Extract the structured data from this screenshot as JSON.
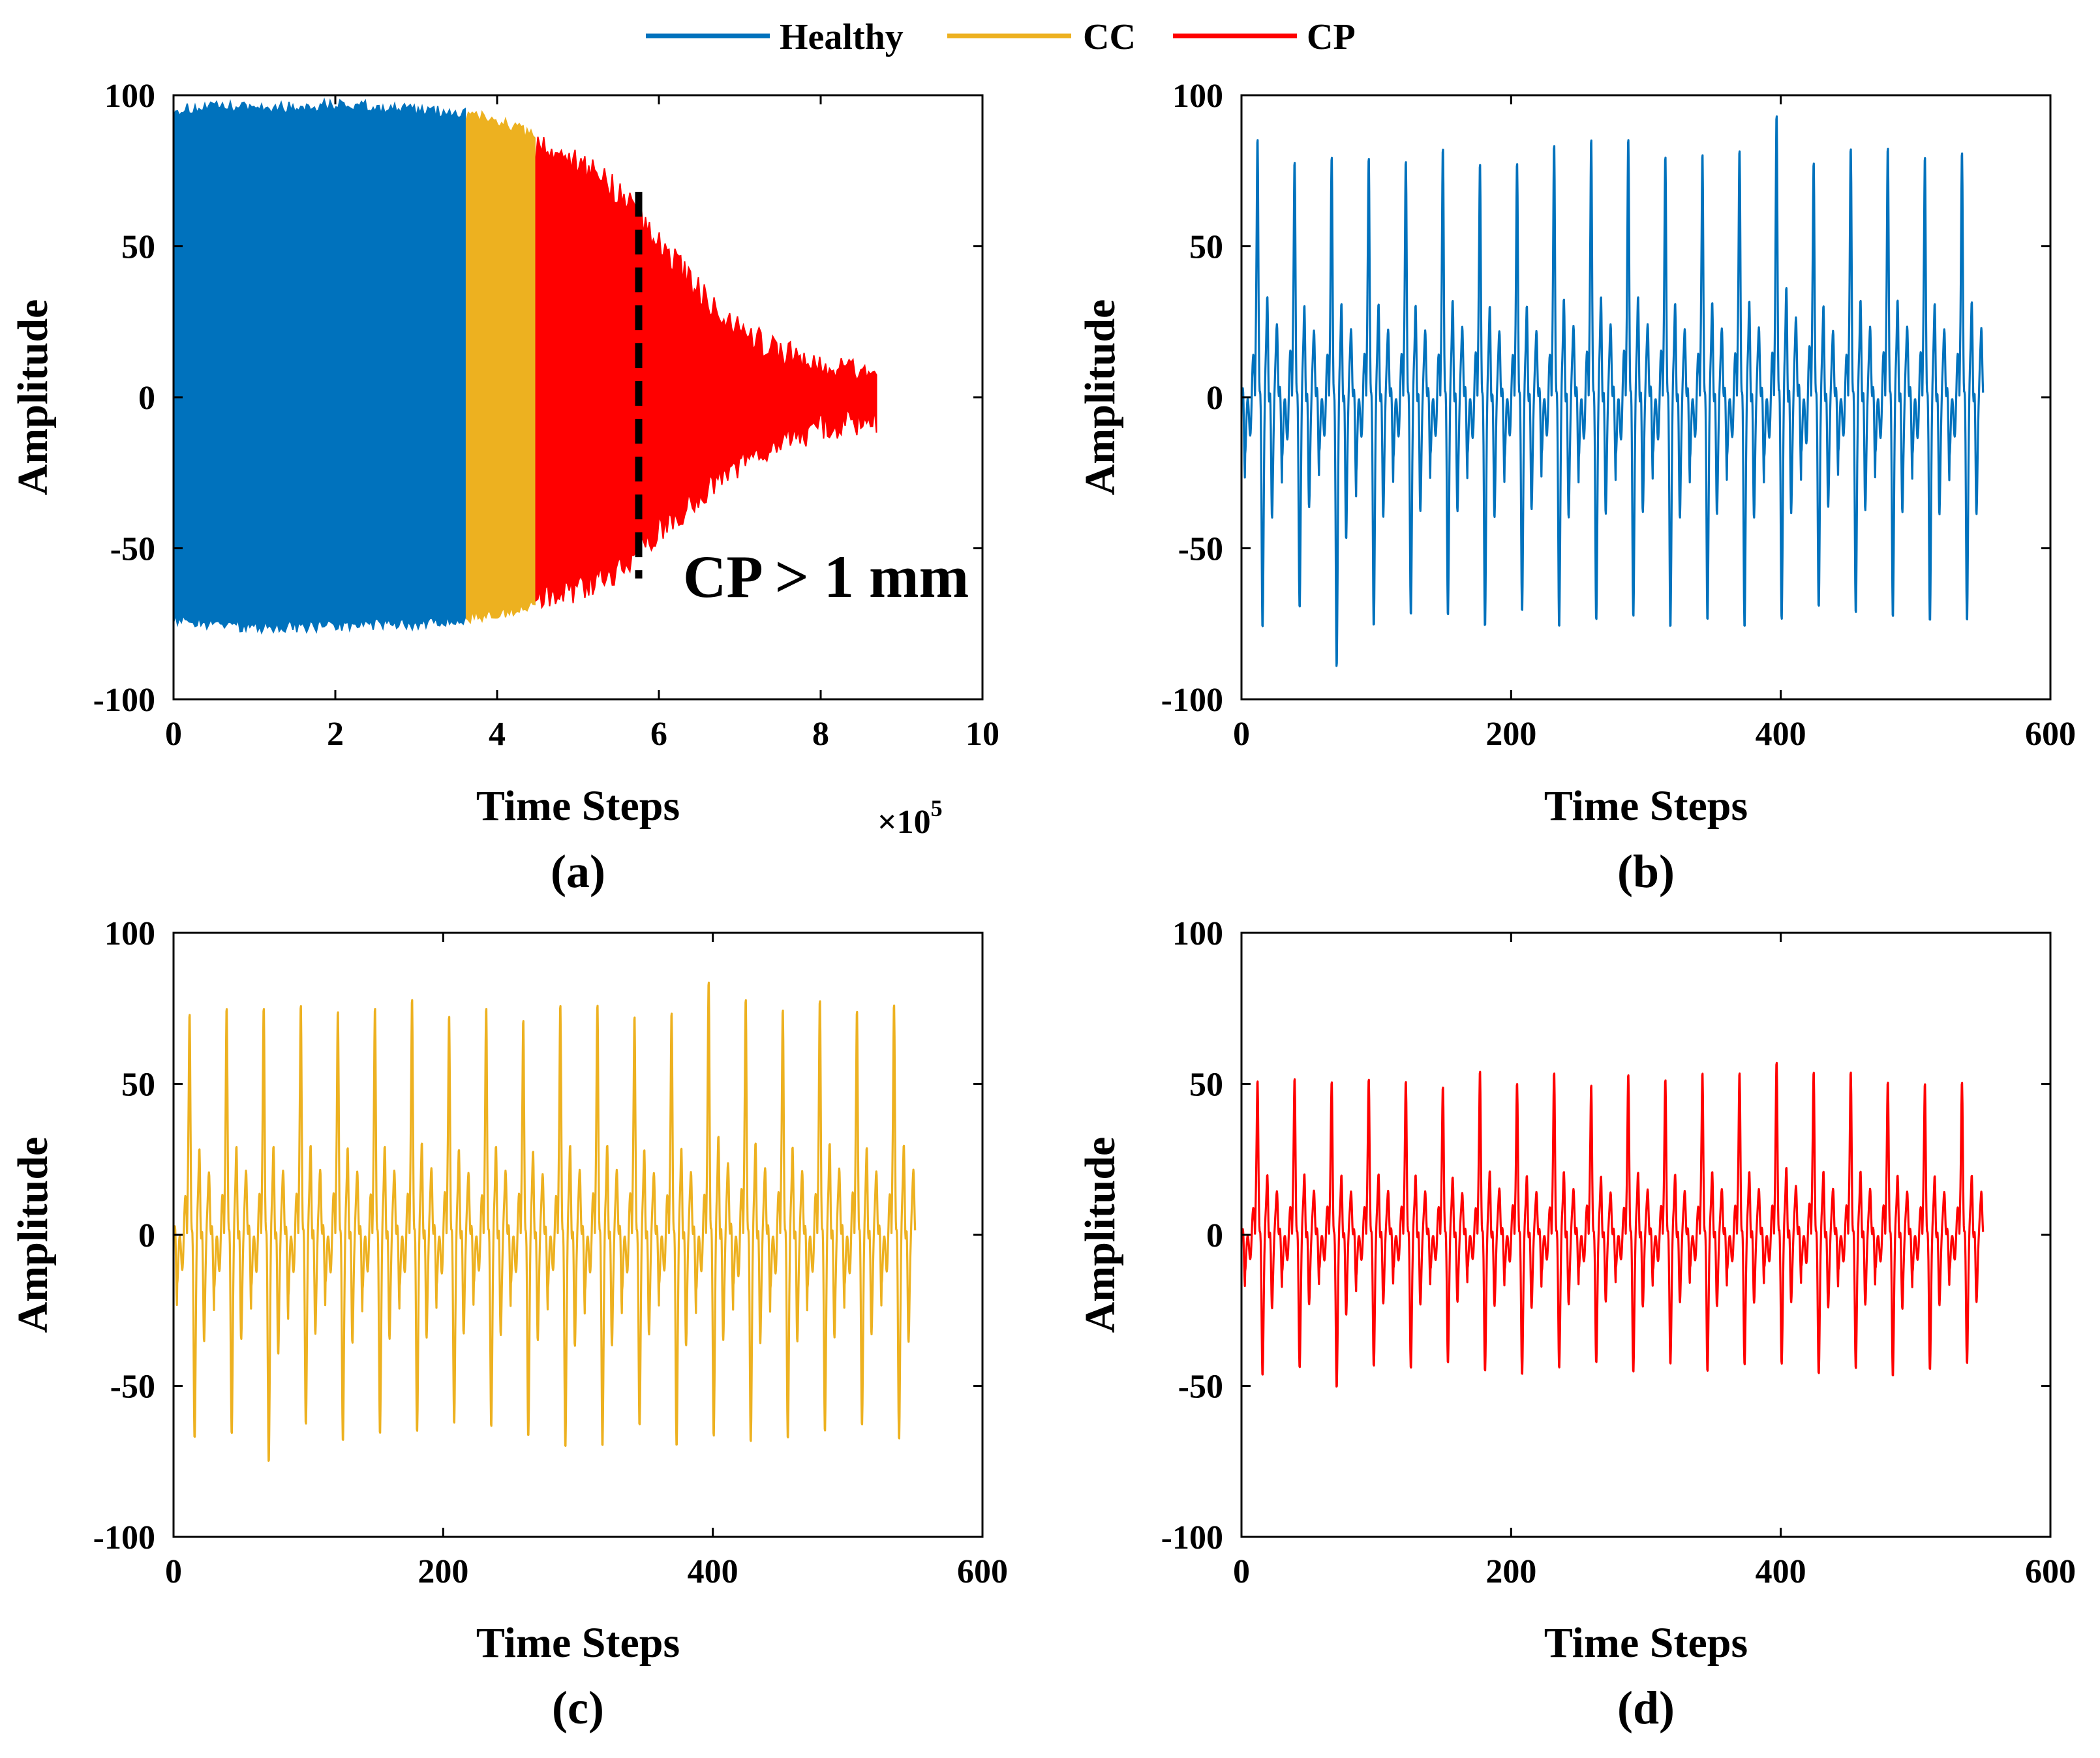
{
  "legend": [
    {
      "label": "Healthy",
      "color": "#0072BD"
    },
    {
      "label": "CC",
      "color": "#EDB120"
    },
    {
      "label": "CP",
      "color": "#FF0000"
    }
  ],
  "chart_data": [
    {
      "id": "a",
      "type": "area",
      "panel_label": "(a)",
      "xlabel": "Time Steps",
      "ylabel": "Amplitude",
      "x_multiplier": "×10",
      "x_multiplier_exp": "5",
      "xlim": [
        0,
        10
      ],
      "ylim": [
        -100,
        100
      ],
      "xticks": [
        "0",
        "2",
        "4",
        "6",
        "8",
        "10"
      ],
      "yticks": [
        "100",
        "50",
        "0",
        "-50",
        "-100"
      ],
      "annotation": {
        "text": "CP > 1 mm",
        "x": 5.75
      },
      "dashed_line": {
        "x": 5.75,
        "y_range": [
          -60,
          68
        ],
        "color": "#000000"
      },
      "series": [
        {
          "name": "Healthy",
          "color": "#0072BD",
          "x_range": [
            0,
            3.62
          ],
          "envelope": {
            "x": [
              0,
              0.5,
              1.0,
              1.5,
              2.0,
              2.5,
              3.0,
              3.62
            ],
            "upper": [
              95,
              96,
              96,
              96,
              97,
              96,
              95,
              94
            ],
            "lower": [
              -74,
              -75,
              -76,
              -76,
              -76,
              -75,
              -75,
              -74
            ]
          }
        },
        {
          "name": "CC",
          "color": "#EDB120",
          "x_range": [
            3.62,
            4.48
          ],
          "envelope": {
            "x": [
              3.62,
              4.0,
              4.48
            ],
            "upper": [
              94,
              92,
              86
            ],
            "lower": [
              -73,
              -72,
              -69
            ]
          }
        },
        {
          "name": "CP",
          "color": "#FF0000",
          "x_range": [
            4.48,
            8.7
          ],
          "envelope": {
            "x": [
              4.48,
              5.0,
              5.5,
              6.0,
              6.5,
              7.0,
              7.5,
              8.0,
              8.5,
              8.7
            ],
            "upper": [
              84,
              78,
              68,
              52,
              35,
              22,
              15,
              11,
              9,
              9
            ],
            "lower": [
              -68,
              -64,
              -57,
              -44,
              -33,
              -22,
              -15,
              -10,
              -8,
              -8
            ]
          }
        }
      ]
    },
    {
      "id": "b",
      "type": "line",
      "panel_label": "(b)",
      "xlabel": "Time Steps",
      "ylabel": "Amplitude",
      "xlim": [
        0,
        600
      ],
      "ylim": [
        -100,
        100
      ],
      "xticks": [
        "0",
        "200",
        "400",
        "600"
      ],
      "yticks": [
        "100",
        "50",
        "0",
        "-50",
        "-100"
      ],
      "series": [
        {
          "name": "Healthy",
          "color": "#0072BD",
          "x_range": [
            0,
            550
          ],
          "period": 27.5,
          "start_offset": 10,
          "peak_max": 98,
          "trough_min": -87,
          "typical_peak": 90,
          "typical_trough": -75
        }
      ]
    },
    {
      "id": "c",
      "type": "line",
      "panel_label": "(c)",
      "xlabel": "Time Steps",
      "ylabel": "Amplitude",
      "xlim": [
        0,
        600
      ],
      "ylim": [
        -100,
        100
      ],
      "xticks": [
        "0",
        "200",
        "400",
        "600"
      ],
      "yticks": [
        "100",
        "50",
        "0",
        "-50",
        "-100"
      ],
      "series": [
        {
          "name": "CC",
          "color": "#EDB120",
          "x_range": [
            0,
            550
          ],
          "period": 27.5,
          "start_offset": 10,
          "peak_max": 88,
          "trough_min": -73,
          "typical_peak": 82,
          "typical_trough": -68
        }
      ]
    },
    {
      "id": "d",
      "type": "line",
      "panel_label": "(d)",
      "xlabel": "Time Steps",
      "ylabel": "Amplitude",
      "xlim": [
        0,
        600
      ],
      "ylim": [
        -100,
        100
      ],
      "xticks": [
        "0",
        "200",
        "400",
        "600"
      ],
      "yticks": [
        "100",
        "50",
        "0",
        "-50",
        "-100"
      ],
      "series": [
        {
          "name": "CP",
          "color": "#FF0000",
          "x_range": [
            0,
            550
          ],
          "period": 27.5,
          "start_offset": 10,
          "peak_max": 60,
          "trough_min": -49,
          "typical_peak": 57,
          "typical_trough": -46
        }
      ]
    }
  ]
}
